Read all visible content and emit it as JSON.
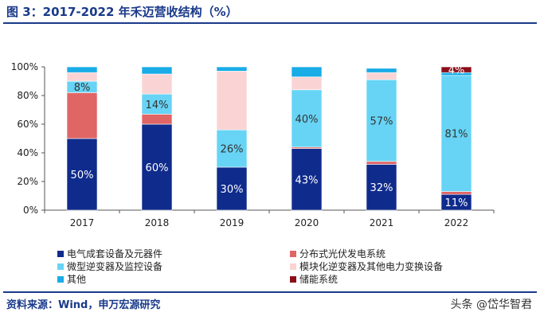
{
  "title": "图 3：2017-2022 年禾迈营收结构（%）",
  "source": "资料来源：Wind，申万宏源研究",
  "watermark": "头条 @岱华智君",
  "chart_data": {
    "type": "bar",
    "stacked": true,
    "categories": [
      "2017",
      "2018",
      "2019",
      "2020",
      "2021",
      "2022"
    ],
    "ylim": [
      0,
      100
    ],
    "yticks": [
      "0%",
      "20%",
      "40%",
      "60%",
      "80%",
      "100%"
    ],
    "legend_position": "bottom",
    "grid": false,
    "series": [
      {
        "name": "电气成套设备及元器件",
        "color": "#0f2b8c",
        "values": [
          50,
          60,
          30,
          43,
          32,
          11
        ],
        "labels": [
          "50%",
          "60%",
          "30%",
          "43%",
          "32%",
          "11%"
        ]
      },
      {
        "name": "分布式光伏发电系统",
        "color": "#e06666",
        "values": [
          32,
          7,
          0,
          1,
          2,
          2
        ],
        "labels": [
          "",
          "",
          "",
          "",
          "",
          ""
        ]
      },
      {
        "name": "微型逆变器及监控设备",
        "color": "#67d4f5",
        "values": [
          8,
          14,
          26,
          40,
          57,
          81
        ],
        "labels": [
          "8%",
          "14%",
          "26%",
          "40%",
          "57%",
          "81%"
        ]
      },
      {
        "name": "模块化逆变器及其他电力变换设备",
        "color": "#fad4d4",
        "values": [
          6,
          14,
          41,
          9,
          5,
          0
        ],
        "labels": [
          "",
          "",
          "",
          "",
          "",
          ""
        ]
      },
      {
        "name": "其他",
        "color": "#19ace6",
        "values": [
          4,
          5,
          3,
          7,
          3,
          2
        ],
        "labels": [
          "",
          "",
          "",
          "",
          "",
          ""
        ]
      },
      {
        "name": "储能系统",
        "color": "#8b0f1a",
        "values": [
          0,
          0,
          0,
          0,
          0,
          4
        ],
        "labels": [
          "",
          "",
          "",
          "",
          "",
          "4%"
        ]
      }
    ]
  }
}
